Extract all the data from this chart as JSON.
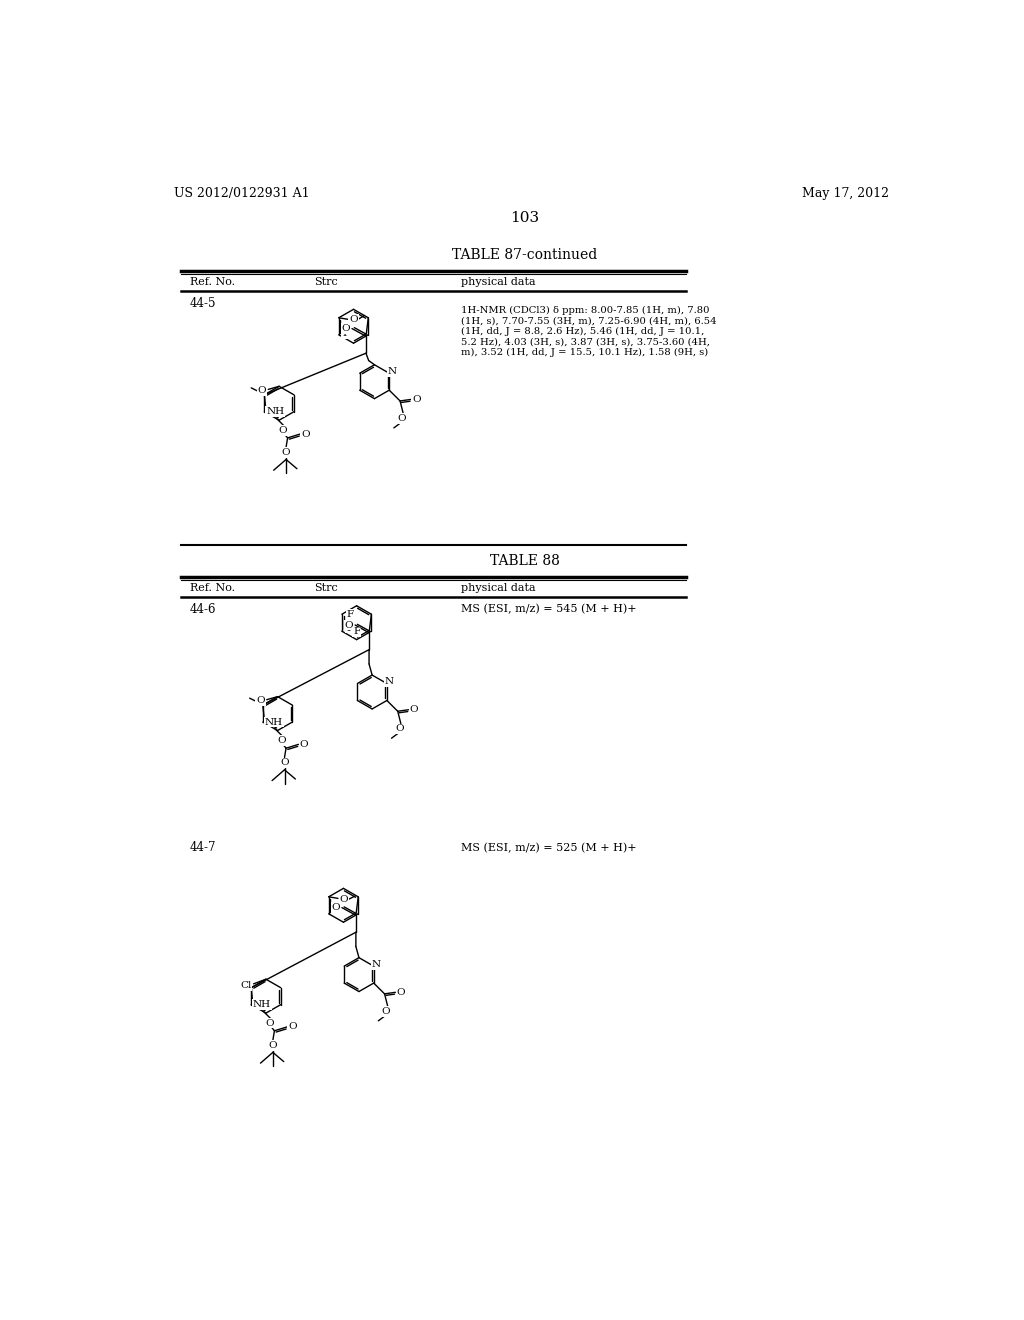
{
  "background_color": "#ffffff",
  "page_header_left": "US 2012/0122931 A1",
  "page_header_right": "May 17, 2012",
  "page_number": "103",
  "table1_title": "TABLE 87-continued",
  "col1": "Ref. No.",
  "col2": "Strc",
  "col3": "physical data",
  "row1_ref": "44-5",
  "row1_data": "1H-NMR (CDCl3) δ ppm: 8.00-7.85 (1H, m), 7.80\n(1H, s), 7.70-7.55 (3H, m), 7.25-6.90 (4H, m), 6.54\n(1H, dd, J = 8.8, 2.6 Hz), 5.46 (1H, dd, J = 10.1,\n5.2 Hz), 4.03 (3H, s), 3.87 (3H, s), 3.75-3.60 (4H,\nm), 3.52 (1H, dd, J = 15.5, 10.1 Hz), 1.58 (9H, s)",
  "table2_title": "TABLE 88",
  "row2_ref": "44-6",
  "row2_data": "MS (ESI, m/z) = 545 (M + H)+",
  "row3_ref": "44-7",
  "row3_data": "MS (ESI, m/z) = 525 (M + H)+",
  "lL": 68,
  "lR": 720
}
